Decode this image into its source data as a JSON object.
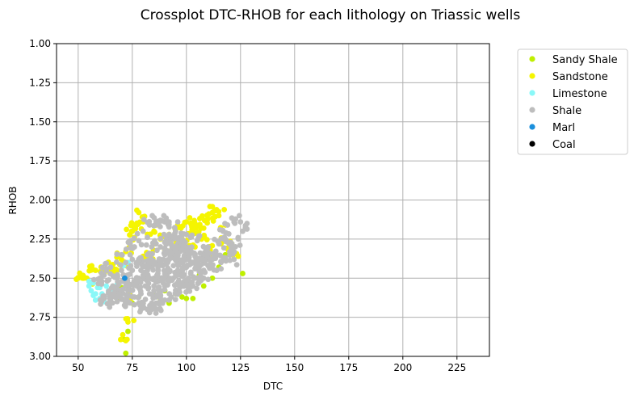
{
  "chart_data": {
    "type": "scatter",
    "title": "Crossplot DTC-RHOB for each lithology on Triassic wells",
    "xlabel": "DTC",
    "ylabel": "RHOB",
    "xlim": [
      40,
      240
    ],
    "ylim": [
      3.0,
      1.0
    ],
    "y_inverted": true,
    "grid": true,
    "legend_position": "outside-right-top",
    "x_ticks": [
      "50",
      "75",
      "100",
      "125",
      "150",
      "175",
      "200",
      "225"
    ],
    "x_tick_values": [
      50,
      75,
      100,
      125,
      150,
      175,
      200,
      225
    ],
    "y_ticks": [
      "1.00",
      "1.25",
      "1.50",
      "1.75",
      "2.00",
      "2.25",
      "2.50",
      "2.75",
      "3.00"
    ],
    "y_tick_values": [
      1.0,
      1.25,
      1.5,
      1.75,
      2.0,
      2.25,
      2.5,
      2.75,
      3.0
    ],
    "series": [
      {
        "name": "Sandy Shale",
        "color": "#bfef00",
        "points": [
          [
            72,
            2.98
          ],
          [
            71,
            2.89
          ],
          [
            73,
            2.84
          ],
          [
            75,
            2.66
          ],
          [
            78,
            2.62
          ],
          [
            85,
            2.6
          ],
          [
            98,
            2.62
          ],
          [
            100,
            2.63
          ],
          [
            103,
            2.63
          ],
          [
            95,
            2.6
          ],
          [
            90,
            2.58
          ],
          [
            108,
            2.55
          ],
          [
            112,
            2.5
          ],
          [
            118,
            2.35
          ],
          [
            121,
            2.28
          ],
          [
            126,
            2.47
          ],
          [
            60,
            2.53
          ],
          [
            68,
            2.63
          ],
          [
            80,
            2.66
          ],
          [
            88,
            2.64
          ],
          [
            92,
            2.66
          ],
          [
            106,
            2.48
          ],
          [
            115,
            2.43
          ],
          [
            70,
            2.56
          ]
        ]
      },
      {
        "name": "Sandstone",
        "color": "#f5f500",
        "points": [
          [
            50,
            2.5
          ],
          [
            52,
            2.5
          ],
          [
            54,
            2.5
          ],
          [
            58,
            2.45
          ],
          [
            62,
            2.47
          ],
          [
            65,
            2.43
          ],
          [
            70,
            2.38
          ],
          [
            72,
            2.33
          ],
          [
            74,
            2.3
          ],
          [
            76,
            2.24
          ],
          [
            75,
            2.2
          ],
          [
            77,
            2.16
          ],
          [
            78,
            2.08
          ],
          [
            80,
            2.14
          ],
          [
            82,
            2.22
          ],
          [
            85,
            2.2
          ],
          [
            88,
            2.25
          ],
          [
            92,
            2.22
          ],
          [
            96,
            2.16
          ],
          [
            100,
            2.14
          ],
          [
            104,
            2.15
          ],
          [
            108,
            2.18
          ],
          [
            110,
            2.12
          ],
          [
            112,
            2.08
          ],
          [
            113,
            2.07
          ],
          [
            115,
            2.1
          ],
          [
            118,
            2.16
          ],
          [
            120,
            2.3
          ],
          [
            124,
            2.36
          ],
          [
            98,
            2.28
          ],
          [
            94,
            2.3
          ],
          [
            90,
            2.32
          ],
          [
            84,
            2.34
          ],
          [
            80,
            2.36
          ],
          [
            104,
            2.3
          ],
          [
            107,
            2.25
          ],
          [
            72,
            2.42
          ],
          [
            68,
            2.45
          ],
          [
            74,
            2.64
          ],
          [
            73,
            2.78
          ],
          [
            72,
            2.9
          ],
          [
            86,
            2.16
          ],
          [
            102,
            2.22
          ],
          [
            116,
            2.28
          ],
          [
            111,
            2.32
          ]
        ]
      },
      {
        "name": "Limestone",
        "color": "#8af8f8",
        "points": [
          [
            55,
            2.55
          ],
          [
            56,
            2.58
          ],
          [
            57,
            2.61
          ],
          [
            58,
            2.64
          ],
          [
            60,
            2.63
          ],
          [
            61,
            2.6
          ],
          [
            59,
            2.56
          ],
          [
            57,
            2.53
          ],
          [
            63,
            2.55
          ],
          [
            62,
            2.62
          ],
          [
            64,
            2.58
          ],
          [
            66,
            2.57
          ],
          [
            58,
            2.6
          ],
          [
            60,
            2.56
          ],
          [
            65,
            2.61
          ],
          [
            71,
            2.42
          ],
          [
            73,
            2.4
          ],
          [
            68,
            2.54
          ],
          [
            55,
            2.52
          ],
          [
            62,
            2.65
          ]
        ]
      },
      {
        "name": "Shale",
        "color": "#bdbdbd",
        "points": [
          [
            62,
            2.63
          ],
          [
            64,
            2.66
          ],
          [
            66,
            2.6
          ],
          [
            68,
            2.65
          ],
          [
            70,
            2.6
          ],
          [
            72,
            2.55
          ],
          [
            74,
            2.58
          ],
          [
            76,
            2.52
          ],
          [
            78,
            2.5
          ],
          [
            80,
            2.48
          ],
          [
            82,
            2.45
          ],
          [
            84,
            2.42
          ],
          [
            86,
            2.4
          ],
          [
            88,
            2.38
          ],
          [
            90,
            2.35
          ],
          [
            92,
            2.33
          ],
          [
            94,
            2.3
          ],
          [
            96,
            2.28
          ],
          [
            98,
            2.27
          ],
          [
            100,
            2.3
          ],
          [
            102,
            2.33
          ],
          [
            104,
            2.36
          ],
          [
            106,
            2.38
          ],
          [
            108,
            2.4
          ],
          [
            110,
            2.42
          ],
          [
            112,
            2.38
          ],
          [
            114,
            2.35
          ],
          [
            116,
            2.4
          ],
          [
            118,
            2.37
          ],
          [
            120,
            2.33
          ],
          [
            122,
            2.38
          ],
          [
            124,
            2.25
          ],
          [
            126,
            2.2
          ],
          [
            128,
            2.15
          ],
          [
            125,
            2.14
          ],
          [
            122,
            2.14
          ],
          [
            119,
            2.16
          ],
          [
            117,
            2.2
          ],
          [
            115,
            2.28
          ],
          [
            110,
            2.3
          ],
          [
            105,
            2.26
          ],
          [
            100,
            2.22
          ],
          [
            95,
            2.2
          ],
          [
            92,
            2.14
          ],
          [
            90,
            2.14
          ],
          [
            88,
            2.13
          ],
          [
            86,
            2.14
          ],
          [
            96,
            2.14
          ],
          [
            83,
            2.16
          ],
          [
            80,
            2.2
          ],
          [
            78,
            2.26
          ],
          [
            76,
            2.3
          ],
          [
            74,
            2.35
          ],
          [
            72,
            2.4
          ],
          [
            70,
            2.45
          ],
          [
            68,
            2.5
          ],
          [
            66,
            2.55
          ],
          [
            76,
            2.62
          ],
          [
            78,
            2.66
          ],
          [
            80,
            2.68
          ],
          [
            82,
            2.7
          ],
          [
            84,
            2.66
          ],
          [
            86,
            2.62
          ],
          [
            88,
            2.58
          ],
          [
            90,
            2.55
          ],
          [
            92,
            2.52
          ],
          [
            94,
            2.5
          ],
          [
            96,
            2.47
          ],
          [
            98,
            2.45
          ],
          [
            100,
            2.43
          ],
          [
            102,
            2.47
          ],
          [
            104,
            2.44
          ],
          [
            106,
            2.45
          ],
          [
            108,
            2.45
          ],
          [
            110,
            2.35
          ],
          [
            85,
            2.5
          ],
          [
            87,
            2.45
          ],
          [
            89,
            2.42
          ],
          [
            91,
            2.4
          ],
          [
            93,
            2.36
          ],
          [
            95,
            2.35
          ],
          [
            97,
            2.33
          ],
          [
            99,
            2.36
          ],
          [
            101,
            2.38
          ],
          [
            81,
            2.55
          ],
          [
            83,
            2.6
          ],
          [
            85,
            2.58
          ],
          [
            87,
            2.56
          ],
          [
            79,
            2.6
          ],
          [
            77,
            2.55
          ],
          [
            75,
            2.45
          ],
          [
            73,
            2.48
          ],
          [
            71,
            2.52
          ],
          [
            69,
            2.58
          ],
          [
            67,
            2.62
          ],
          [
            65,
            2.65
          ],
          [
            82,
            2.35
          ],
          [
            84,
            2.3
          ],
          [
            86,
            2.28
          ],
          [
            88,
            2.3
          ],
          [
            90,
            2.27
          ],
          [
            92,
            2.25
          ],
          [
            94,
            2.24
          ],
          [
            96,
            2.38
          ],
          [
            98,
            2.4
          ],
          [
            100,
            2.37
          ],
          [
            102,
            2.4
          ],
          [
            104,
            2.5
          ],
          [
            106,
            2.5
          ],
          [
            108,
            2.5
          ],
          [
            118,
            2.25
          ],
          [
            121,
            2.28
          ],
          [
            83,
            2.72
          ],
          [
            86,
            2.7
          ],
          [
            89,
            2.66
          ],
          [
            92,
            2.64
          ],
          [
            95,
            2.6
          ],
          [
            97,
            2.56
          ],
          [
            99,
            2.52
          ],
          [
            101,
            2.5
          ],
          [
            103,
            2.55
          ],
          [
            78,
            2.4
          ],
          [
            80,
            2.42
          ],
          [
            94,
            2.42
          ],
          [
            96,
            2.45
          ],
          [
            91,
            2.48
          ],
          [
            89,
            2.5
          ],
          [
            87,
            2.52
          ],
          [
            85,
            2.55
          ],
          [
            83,
            2.5
          ],
          [
            81,
            2.48
          ],
          [
            79,
            2.45
          ],
          [
            77,
            2.4
          ],
          [
            75,
            2.38
          ],
          [
            99,
            2.28
          ],
          [
            97,
            2.25
          ],
          [
            93,
            2.28
          ],
          [
            108,
            2.35
          ],
          [
            110,
            2.38
          ],
          [
            112,
            2.42
          ],
          [
            114,
            2.45
          ],
          [
            116,
            2.44
          ],
          [
            70,
            2.35
          ],
          [
            74,
            2.28
          ],
          [
            63,
            2.45
          ],
          [
            65,
            2.43
          ],
          [
            60,
            2.5
          ],
          [
            62,
            2.48
          ],
          [
            70,
            2.63
          ],
          [
            73,
            2.65
          ],
          [
            76,
            2.67
          ],
          [
            79,
            2.7
          ],
          [
            86,
            2.66
          ],
          [
            90,
            2.64
          ],
          [
            93,
            2.62
          ],
          [
            96,
            2.58
          ],
          [
            100,
            2.55
          ],
          [
            105,
            2.5
          ]
        ]
      },
      {
        "name": "Marl",
        "color": "#1a8fdc",
        "points": [
          [
            71.5,
            2.5
          ]
        ]
      },
      {
        "name": "Coal",
        "color": "#000000",
        "points": []
      }
    ]
  }
}
